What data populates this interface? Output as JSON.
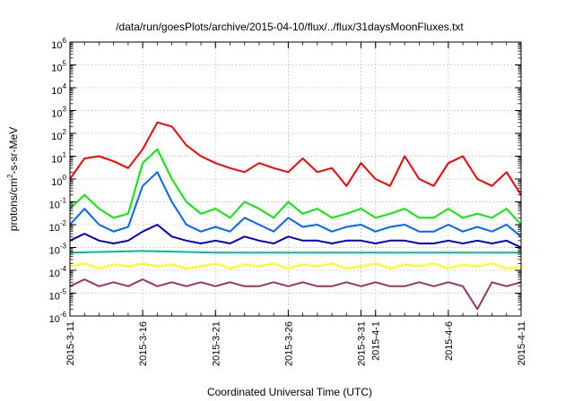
{
  "chart_data": {
    "type": "line",
    "title": "/data/run/goesPlots/archive/2015-04-10/flux/../flux/31daysMoonFluxes.txt",
    "xlabel": "Coordinated Universal Time (UTC)",
    "ylabel": {
      "prefix": "protons/cm",
      "superscript": "2",
      "suffix": "-s-sr-MeV"
    },
    "y_scale": "log",
    "ylim": [
      1e-06,
      1000000.0
    ],
    "y_ticks": [
      {
        "base": "10",
        "exp": "6",
        "value": 1000000.0
      },
      {
        "base": "10",
        "exp": "5",
        "value": 100000.0
      },
      {
        "base": "10",
        "exp": "4",
        "value": 10000.0
      },
      {
        "base": "10",
        "exp": "3",
        "value": 1000.0
      },
      {
        "base": "10",
        "exp": "2",
        "value": 100.0
      },
      {
        "base": "10",
        "exp": "1",
        "value": 10.0
      },
      {
        "base": "10",
        "exp": "0",
        "value": 1.0
      },
      {
        "base": "10",
        "exp": "-1",
        "value": 0.1
      },
      {
        "base": "10",
        "exp": "-2",
        "value": 0.01
      },
      {
        "base": "10",
        "exp": "-3",
        "value": 0.001
      },
      {
        "base": "10",
        "exp": "-4",
        "value": 0.0001
      },
      {
        "base": "10",
        "exp": "-5",
        "value": 1e-05
      },
      {
        "base": "10",
        "exp": "-6",
        "value": 1e-06
      }
    ],
    "xlim": [
      "2015-03-11",
      "2015-04-11"
    ],
    "x_ticks": [
      {
        "label": "2015-3-11",
        "date": "2015-03-11"
      },
      {
        "label": "2015-3-16",
        "date": "2015-03-16"
      },
      {
        "label": "2015-3-21",
        "date": "2015-03-21"
      },
      {
        "label": "2015-3-26",
        "date": "2015-03-26"
      },
      {
        "label": "2015-3-31",
        "date": "2015-03-31"
      },
      {
        "label": "2015-4-1",
        "date": "2015-04-01"
      },
      {
        "label": "2015-4-6",
        "date": "2015-04-06"
      },
      {
        "label": "2015-4-11",
        "date": "2015-04-11"
      }
    ],
    "grid": true,
    "series": [
      {
        "color": "#ff0000",
        "x": [
          "2015-03-11",
          "2015-03-12",
          "2015-03-13",
          "2015-03-14",
          "2015-03-15",
          "2015-03-16",
          "2015-03-17",
          "2015-03-18",
          "2015-03-19",
          "2015-03-20",
          "2015-03-21",
          "2015-03-22",
          "2015-03-23",
          "2015-03-24",
          "2015-03-25",
          "2015-03-26",
          "2015-03-27",
          "2015-03-28",
          "2015-03-29",
          "2015-03-30",
          "2015-03-31",
          "2015-04-01",
          "2015-04-02",
          "2015-04-03",
          "2015-04-04",
          "2015-04-05",
          "2015-04-06",
          "2015-04-07",
          "2015-04-08",
          "2015-04-09",
          "2015-04-10",
          "2015-04-11"
        ],
        "y": [
          1,
          8,
          10,
          6,
          3,
          20,
          300,
          200,
          30,
          10,
          5,
          3,
          2,
          5,
          3,
          2,
          8,
          2,
          3,
          0.5,
          5,
          1,
          0.5,
          10,
          1,
          0.5,
          5,
          10,
          1,
          0.5,
          2,
          0.2
        ]
      },
      {
        "color": "#00ee00",
        "x": [
          "2015-03-11",
          "2015-03-12",
          "2015-03-13",
          "2015-03-14",
          "2015-03-15",
          "2015-03-16",
          "2015-03-17",
          "2015-03-18",
          "2015-03-19",
          "2015-03-20",
          "2015-03-21",
          "2015-03-22",
          "2015-03-23",
          "2015-03-24",
          "2015-03-25",
          "2015-03-26",
          "2015-03-27",
          "2015-03-28",
          "2015-03-29",
          "2015-03-30",
          "2015-03-31",
          "2015-04-01",
          "2015-04-02",
          "2015-04-03",
          "2015-04-04",
          "2015-04-05",
          "2015-04-06",
          "2015-04-07",
          "2015-04-08",
          "2015-04-09",
          "2015-04-10",
          "2015-04-11"
        ],
        "y": [
          0.05,
          0.2,
          0.05,
          0.02,
          0.03,
          5,
          20,
          1,
          0.1,
          0.03,
          0.05,
          0.02,
          0.1,
          0.05,
          0.02,
          0.1,
          0.03,
          0.05,
          0.02,
          0.03,
          0.05,
          0.02,
          0.03,
          0.05,
          0.02,
          0.02,
          0.05,
          0.02,
          0.03,
          0.02,
          0.05,
          0.01
        ]
      },
      {
        "color": "#0066ff",
        "x": [
          "2015-03-11",
          "2015-03-12",
          "2015-03-13",
          "2015-03-14",
          "2015-03-15",
          "2015-03-16",
          "2015-03-17",
          "2015-03-18",
          "2015-03-19",
          "2015-03-20",
          "2015-03-21",
          "2015-03-22",
          "2015-03-23",
          "2015-03-24",
          "2015-03-25",
          "2015-03-26",
          "2015-03-27",
          "2015-03-28",
          "2015-03-29",
          "2015-03-30",
          "2015-03-31",
          "2015-04-01",
          "2015-04-02",
          "2015-04-03",
          "2015-04-04",
          "2015-04-05",
          "2015-04-06",
          "2015-04-07",
          "2015-04-08",
          "2015-04-09",
          "2015-04-10",
          "2015-04-11"
        ],
        "y": [
          0.01,
          0.05,
          0.01,
          0.005,
          0.008,
          0.5,
          2,
          0.1,
          0.01,
          0.005,
          0.008,
          0.005,
          0.02,
          0.01,
          0.005,
          0.02,
          0.008,
          0.01,
          0.005,
          0.008,
          0.01,
          0.005,
          0.008,
          0.01,
          0.005,
          0.005,
          0.01,
          0.005,
          0.008,
          0.005,
          0.01,
          0.003
        ]
      },
      {
        "color": "#0000cc",
        "x": [
          "2015-03-11",
          "2015-03-12",
          "2015-03-13",
          "2015-03-14",
          "2015-03-15",
          "2015-03-16",
          "2015-03-17",
          "2015-03-18",
          "2015-03-19",
          "2015-03-20",
          "2015-03-21",
          "2015-03-22",
          "2015-03-23",
          "2015-03-24",
          "2015-03-25",
          "2015-03-26",
          "2015-03-27",
          "2015-03-28",
          "2015-03-29",
          "2015-03-30",
          "2015-03-31",
          "2015-04-01",
          "2015-04-02",
          "2015-04-03",
          "2015-04-04",
          "2015-04-05",
          "2015-04-06",
          "2015-04-07",
          "2015-04-08",
          "2015-04-09",
          "2015-04-10",
          "2015-04-11"
        ],
        "y": [
          0.002,
          0.004,
          0.002,
          0.0015,
          0.002,
          0.005,
          0.01,
          0.003,
          0.002,
          0.0015,
          0.002,
          0.0015,
          0.003,
          0.002,
          0.0015,
          0.003,
          0.002,
          0.002,
          0.0015,
          0.002,
          0.002,
          0.0015,
          0.002,
          0.002,
          0.0015,
          0.0015,
          0.002,
          0.0015,
          0.002,
          0.0015,
          0.002,
          0.001
        ]
      },
      {
        "color": "#00bb99",
        "x": [
          "2015-03-11",
          "2015-03-16",
          "2015-03-21",
          "2015-03-26",
          "2015-03-31",
          "2015-04-01",
          "2015-04-06",
          "2015-04-11"
        ],
        "y": [
          0.0006,
          0.0007,
          0.0006,
          0.0006,
          0.0006,
          0.0006,
          0.0006,
          0.0006
        ]
      },
      {
        "color": "#ffff00",
        "x": [
          "2015-03-11",
          "2015-03-12",
          "2015-03-13",
          "2015-03-14",
          "2015-03-15",
          "2015-03-16",
          "2015-03-17",
          "2015-03-18",
          "2015-03-19",
          "2015-03-20",
          "2015-03-21",
          "2015-03-22",
          "2015-03-23",
          "2015-03-24",
          "2015-03-25",
          "2015-03-26",
          "2015-03-27",
          "2015-03-28",
          "2015-03-29",
          "2015-03-30",
          "2015-03-31",
          "2015-04-01",
          "2015-04-02",
          "2015-04-03",
          "2015-04-04",
          "2015-04-05",
          "2015-04-06",
          "2015-04-07",
          "2015-04-08",
          "2015-04-09",
          "2015-04-10",
          "2015-04-11"
        ],
        "y": [
          0.00015,
          0.0002,
          0.00012,
          0.00018,
          0.00015,
          0.0002,
          0.00015,
          0.00018,
          0.00012,
          0.00015,
          0.0002,
          0.00012,
          0.00018,
          0.00015,
          0.0002,
          0.00012,
          0.00018,
          0.00015,
          0.0002,
          0.00012,
          0.00015,
          0.0002,
          0.00012,
          0.00018,
          0.00015,
          0.0002,
          0.00012,
          0.00018,
          0.00015,
          0.0002,
          0.00012,
          0.00015
        ]
      },
      {
        "color": "#993366",
        "x": [
          "2015-03-11",
          "2015-03-12",
          "2015-03-13",
          "2015-03-14",
          "2015-03-15",
          "2015-03-16",
          "2015-03-17",
          "2015-03-18",
          "2015-03-19",
          "2015-03-20",
          "2015-03-21",
          "2015-03-22",
          "2015-03-23",
          "2015-03-24",
          "2015-03-25",
          "2015-03-26",
          "2015-03-27",
          "2015-03-28",
          "2015-03-29",
          "2015-03-30",
          "2015-03-31",
          "2015-04-01",
          "2015-04-02",
          "2015-04-03",
          "2015-04-04",
          "2015-04-05",
          "2015-04-06",
          "2015-04-07",
          "2015-04-08",
          "2015-04-09",
          "2015-04-10",
          "2015-04-11"
        ],
        "y": [
          2e-05,
          4e-05,
          2e-05,
          3e-05,
          2e-05,
          4e-05,
          2e-05,
          3e-05,
          2e-05,
          3e-05,
          2e-05,
          3e-05,
          2e-05,
          2e-05,
          3e-05,
          2e-05,
          3e-05,
          2e-05,
          2e-05,
          3e-05,
          2e-05,
          3e-05,
          2e-05,
          2e-05,
          3e-05,
          2e-05,
          3e-05,
          2e-05,
          2e-06,
          3e-05,
          2e-05,
          3e-05
        ]
      }
    ]
  }
}
